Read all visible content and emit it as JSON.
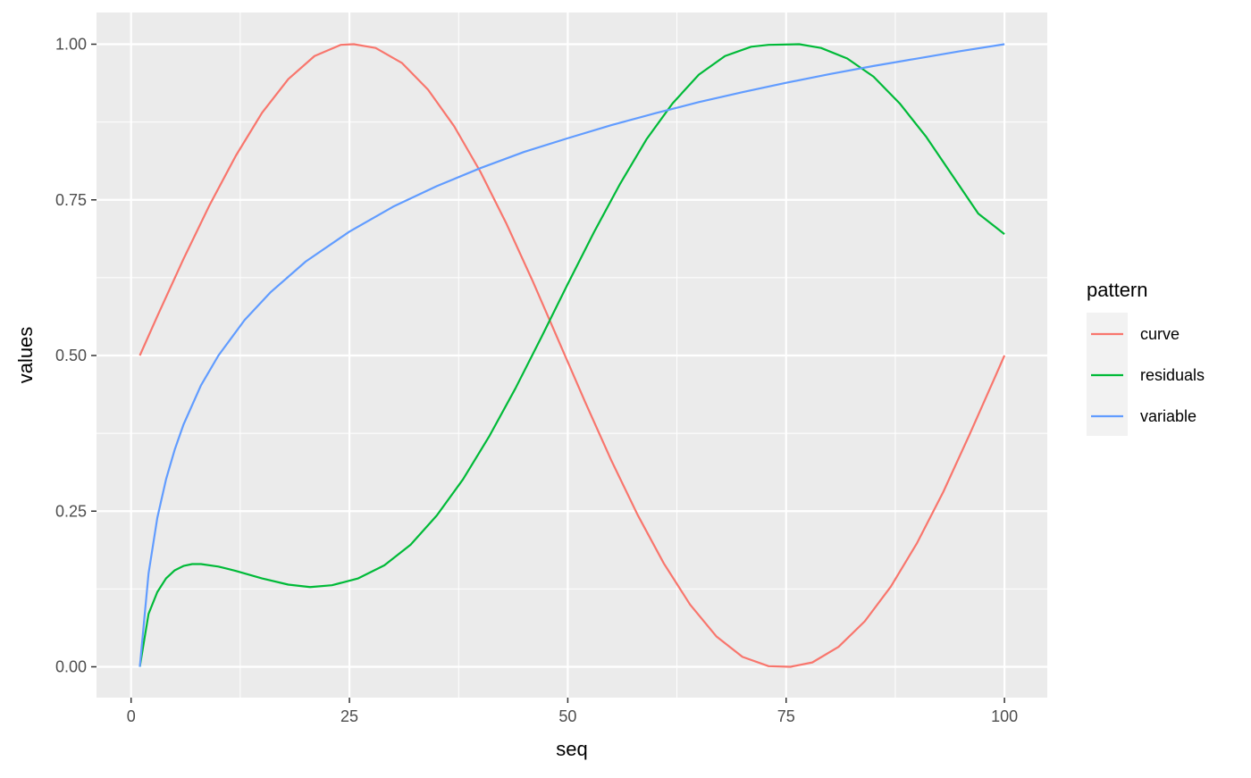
{
  "chart_data": {
    "type": "line",
    "xlabel": "seq",
    "ylabel": "values",
    "xlim": [
      1,
      100
    ],
    "ylim": [
      0,
      1
    ],
    "x_ticks": [
      0,
      25,
      50,
      75,
      100
    ],
    "x_tick_labels": [
      "0",
      "25",
      "50",
      "75",
      "100"
    ],
    "y_ticks": [
      0,
      0.25,
      0.5,
      0.75,
      1.0
    ],
    "y_tick_labels": [
      "0.00",
      "0.25",
      "0.50",
      "0.75",
      "1.00"
    ],
    "grid": true,
    "legend": {
      "title": "pattern",
      "placement": "right"
    },
    "series": [
      {
        "name": "curve",
        "color": "#F8766D",
        "points": [
          [
            1,
            0.5
          ],
          [
            3,
            0.563
          ],
          [
            6,
            0.655
          ],
          [
            9,
            0.742
          ],
          [
            12,
            0.821
          ],
          [
            15,
            0.89
          ],
          [
            18,
            0.944
          ],
          [
            21,
            0.981
          ],
          [
            24,
            0.999
          ],
          [
            25.5,
            1.0
          ],
          [
            28,
            0.994
          ],
          [
            31,
            0.97
          ],
          [
            34,
            0.927
          ],
          [
            37,
            0.868
          ],
          [
            40,
            0.795
          ],
          [
            43,
            0.711
          ],
          [
            46,
            0.619
          ],
          [
            49,
            0.522
          ],
          [
            52,
            0.425
          ],
          [
            55,
            0.331
          ],
          [
            58,
            0.244
          ],
          [
            61,
            0.166
          ],
          [
            64,
            0.1
          ],
          [
            67,
            0.049
          ],
          [
            70,
            0.016
          ],
          [
            73,
            0.001
          ],
          [
            75.5,
            0.0
          ],
          [
            78,
            0.007
          ],
          [
            81,
            0.032
          ],
          [
            84,
            0.073
          ],
          [
            87,
            0.129
          ],
          [
            90,
            0.199
          ],
          [
            93,
            0.281
          ],
          [
            96,
            0.373
          ],
          [
            99,
            0.468
          ],
          [
            100,
            0.5
          ]
        ]
      },
      {
        "name": "residuals",
        "color": "#00BA38",
        "points": [
          [
            1,
            0.0
          ],
          [
            2,
            0.085
          ],
          [
            3,
            0.12
          ],
          [
            4,
            0.142
          ],
          [
            5,
            0.155
          ],
          [
            6,
            0.162
          ],
          [
            7,
            0.165
          ],
          [
            8,
            0.165
          ],
          [
            10,
            0.161
          ],
          [
            12,
            0.154
          ],
          [
            15,
            0.142
          ],
          [
            18,
            0.132
          ],
          [
            20.5,
            0.128
          ],
          [
            23,
            0.131
          ],
          [
            26,
            0.142
          ],
          [
            29,
            0.163
          ],
          [
            32,
            0.196
          ],
          [
            35,
            0.243
          ],
          [
            38,
            0.301
          ],
          [
            41,
            0.37
          ],
          [
            44,
            0.447
          ],
          [
            47,
            0.53
          ],
          [
            50,
            0.615
          ],
          [
            53,
            0.698
          ],
          [
            56,
            0.776
          ],
          [
            59,
            0.847
          ],
          [
            62,
            0.905
          ],
          [
            65,
            0.951
          ],
          [
            68,
            0.981
          ],
          [
            71,
            0.996
          ],
          [
            73,
            0.999
          ],
          [
            76.5,
            1.0
          ],
          [
            79,
            0.994
          ],
          [
            82,
            0.977
          ],
          [
            85,
            0.948
          ],
          [
            88,
            0.905
          ],
          [
            91,
            0.852
          ],
          [
            94,
            0.79
          ],
          [
            97,
            0.728
          ],
          [
            100,
            0.695
          ]
        ]
      },
      {
        "name": "variable",
        "color": "#619CFF",
        "points": [
          [
            1,
            0.0
          ],
          [
            2,
            0.15
          ],
          [
            3,
            0.239
          ],
          [
            4,
            0.301
          ],
          [
            5,
            0.349
          ],
          [
            6,
            0.389
          ],
          [
            8,
            0.452
          ],
          [
            10,
            0.5
          ],
          [
            13,
            0.557
          ],
          [
            16,
            0.602
          ],
          [
            20,
            0.651
          ],
          [
            25,
            0.699
          ],
          [
            30,
            0.739
          ],
          [
            35,
            0.772
          ],
          [
            40,
            0.801
          ],
          [
            45,
            0.827
          ],
          [
            50,
            0.849
          ],
          [
            55,
            0.87
          ],
          [
            60,
            0.889
          ],
          [
            65,
            0.907
          ],
          [
            70,
            0.923
          ],
          [
            75,
            0.938
          ],
          [
            80,
            0.952
          ],
          [
            85,
            0.965
          ],
          [
            90,
            0.977
          ],
          [
            95,
            0.989
          ],
          [
            100,
            1.0
          ]
        ]
      }
    ]
  }
}
